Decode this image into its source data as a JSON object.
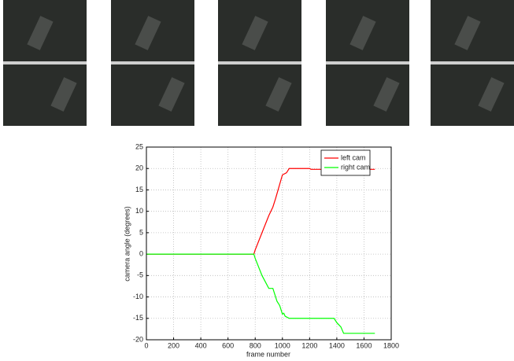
{
  "chart_data": {
    "type": "line",
    "xlabel": "frame number",
    "ylabel": "camera angle (degrees)",
    "xlim": [
      0,
      1800
    ],
    "ylim": [
      -20,
      25
    ],
    "xticks": [
      0,
      200,
      400,
      600,
      800,
      1000,
      1200,
      1400,
      1600,
      1800
    ],
    "yticks": [
      -20,
      -15,
      -10,
      -5,
      0,
      5,
      10,
      15,
      20,
      25
    ],
    "grid": true,
    "legend": "upper right",
    "series": [
      {
        "name": "left cam",
        "color": "#ff0000",
        "x": [
          0,
          790,
          800,
          850,
          900,
          930,
          950,
          1000,
          1030,
          1050,
          1200,
          1210,
          1680
        ],
        "values": [
          0,
          0,
          1,
          5,
          9,
          11,
          13,
          18.5,
          19,
          20,
          20,
          19.8,
          19.8
        ]
      },
      {
        "name": "right cam",
        "color": "#00ff00",
        "x": [
          0,
          790,
          800,
          850,
          900,
          930,
          960,
          980,
          1000,
          1010,
          1020,
          1050,
          1200,
          1380,
          1400,
          1430,
          1450,
          1680
        ],
        "values": [
          0,
          0,
          -1,
          -5,
          -8,
          -8,
          -11,
          -12,
          -14,
          -13.8,
          -14.5,
          -15,
          -15,
          -15,
          -16,
          -17,
          -18.5,
          -18.5
        ]
      }
    ]
  }
}
